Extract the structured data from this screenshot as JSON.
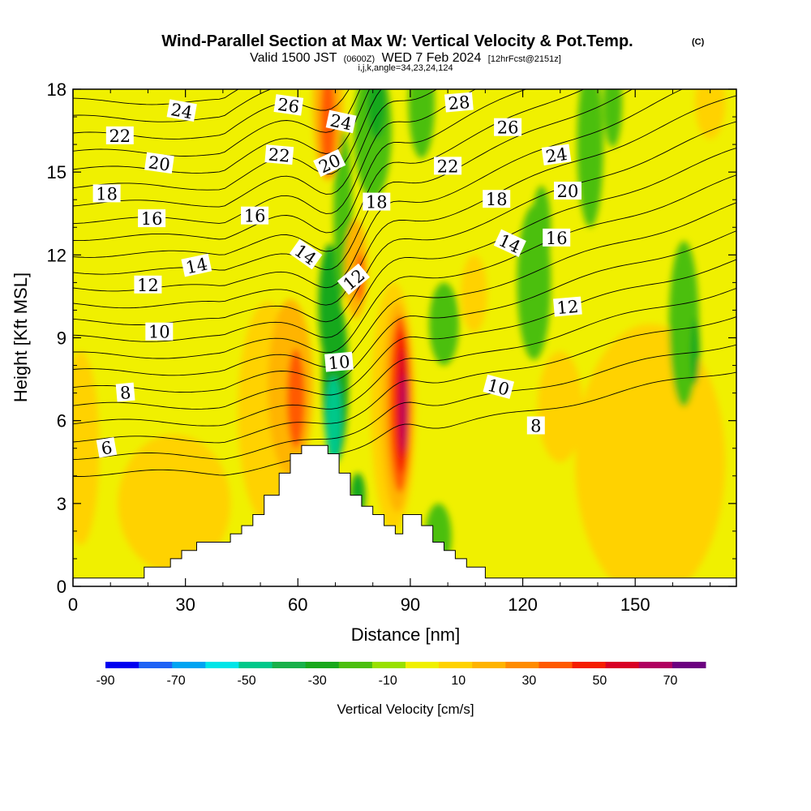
{
  "header": {
    "title": "Wind-Parallel Section at Max W: Vertical Velocity & Pot.Temp.",
    "copyright": "(C)",
    "valid_prefix": "Valid 1500 JST",
    "valid_utc": "(0600Z)",
    "valid_date": "WED 7 Feb 2024",
    "forecast": "[12hrFcst@2151z]",
    "params": "i,j,k,angle=34,23,24,124"
  },
  "chart_data": {
    "type": "heatmap",
    "title": "Wind-Parallel Section at Max W: Vertical Velocity & Pot.Temp.",
    "xlabel": "Distance [nm]",
    "ylabel": "Height [Kft MSL]",
    "xlim": [
      0,
      177
    ],
    "ylim": [
      0,
      18
    ],
    "x_ticks": [
      {
        "value": 0,
        "label": "0"
      },
      {
        "value": 30,
        "label": "30"
      },
      {
        "value": 60,
        "label": "60"
      },
      {
        "value": 90,
        "label": "90"
      },
      {
        "value": 120,
        "label": "120"
      },
      {
        "value": 150,
        "label": "150"
      }
    ],
    "y_ticks": [
      {
        "value": 0,
        "label": "0"
      },
      {
        "value": 3,
        "label": "3"
      },
      {
        "value": 6,
        "label": "6"
      },
      {
        "value": 9,
        "label": "9"
      },
      {
        "value": 12,
        "label": "12"
      },
      {
        "value": 15,
        "label": "15"
      },
      {
        "value": 18,
        "label": "18"
      }
    ],
    "colorbar": {
      "title": "Vertical Velocity [cm/s]",
      "min": -90,
      "max": 80,
      "step": 10,
      "colors": [
        "#0000f0",
        "#1f63f5",
        "#00a4f2",
        "#00e5e8",
        "#00c88a",
        "#19b04a",
        "#19a81c",
        "#4cbf10",
        "#99e000",
        "#f0f000",
        "#ffd200",
        "#ffb400",
        "#ff8c00",
        "#ff5a00",
        "#f51e00",
        "#d80026",
        "#b00060",
        "#6c0080"
      ],
      "tick_labels": [
        {
          "value": -90,
          "label": "-90"
        },
        {
          "value": -70,
          "label": "-70"
        },
        {
          "value": -50,
          "label": "-50"
        },
        {
          "value": -30,
          "label": "-30"
        },
        {
          "value": -10,
          "label": "-10"
        },
        {
          "value": 10,
          "label": "10"
        },
        {
          "value": 30,
          "label": "30"
        },
        {
          "value": 50,
          "label": "50"
        },
        {
          "value": 70,
          "label": "70"
        }
      ]
    },
    "terrain": [
      [
        0,
        0.3
      ],
      [
        19,
        0.3
      ],
      [
        19,
        0.7
      ],
      [
        26,
        0.7
      ],
      [
        26,
        1.0
      ],
      [
        29,
        1.0
      ],
      [
        29,
        1.3
      ],
      [
        33,
        1.3
      ],
      [
        33,
        1.6
      ],
      [
        42,
        1.6
      ],
      [
        42,
        1.9
      ],
      [
        45,
        1.9
      ],
      [
        45,
        2.2
      ],
      [
        48,
        2.2
      ],
      [
        48,
        2.6
      ],
      [
        51,
        2.6
      ],
      [
        51,
        3.3
      ],
      [
        55,
        3.3
      ],
      [
        55,
        4.1
      ],
      [
        58,
        4.1
      ],
      [
        58,
        4.8
      ],
      [
        61,
        4.8
      ],
      [
        61,
        5.1
      ],
      [
        68,
        5.1
      ],
      [
        68,
        4.8
      ],
      [
        71,
        4.8
      ],
      [
        71,
        4.1
      ],
      [
        74,
        4.1
      ],
      [
        74,
        3.3
      ],
      [
        77,
        3.3
      ],
      [
        77,
        2.9
      ],
      [
        80,
        2.9
      ],
      [
        80,
        2.6
      ],
      [
        83,
        2.6
      ],
      [
        83,
        2.2
      ],
      [
        86,
        2.2
      ],
      [
        86,
        1.9
      ],
      [
        88,
        1.9
      ],
      [
        88,
        2.6
      ],
      [
        93,
        2.6
      ],
      [
        93,
        2.2
      ],
      [
        96,
        2.2
      ],
      [
        96,
        1.6
      ],
      [
        99,
        1.6
      ],
      [
        99,
        1.3
      ],
      [
        102,
        1.3
      ],
      [
        102,
        1.0
      ],
      [
        105,
        1.0
      ],
      [
        105,
        0.7
      ],
      [
        110,
        0.7
      ],
      [
        110,
        0.3
      ],
      [
        177,
        0.3
      ]
    ],
    "velocity_cells": [
      {
        "x": 2,
        "y": 5.0,
        "rx": 5,
        "ry": 3.5,
        "w": 10
      },
      {
        "x": 27,
        "y": 3.0,
        "rx": 15,
        "ry": 2.5,
        "w": 15
      },
      {
        "x": 52,
        "y": 6.3,
        "rx": 8,
        "ry": 4.0,
        "w": 18
      },
      {
        "x": 58,
        "y": 7.2,
        "rx": 6,
        "ry": 3.2,
        "w": 28
      },
      {
        "x": 59.5,
        "y": 6.8,
        "rx": 2.4,
        "ry": 1.8,
        "w": 40
      },
      {
        "x": 70,
        "y": 7.5,
        "rx": 3.5,
        "ry": 3.0,
        "w": -22
      },
      {
        "x": 68.5,
        "y": 10.2,
        "rx": 3,
        "ry": 2.2,
        "w": -25
      },
      {
        "x": 69.5,
        "y": 6.0,
        "rx": 2.2,
        "ry": 1.6,
        "w": -42
      },
      {
        "x": 72,
        "y": 13.5,
        "rx": 2.5,
        "ry": 3.0,
        "w": -18
      },
      {
        "x": 75.5,
        "y": 11.5,
        "rx": 3,
        "ry": 1.8,
        "w": 28
      },
      {
        "x": 76.5,
        "y": 11.2,
        "rx": 1.2,
        "ry": 0.9,
        "w": 46
      },
      {
        "x": 68,
        "y": 17.5,
        "rx": 4.0,
        "ry": 2.8,
        "w": 28
      },
      {
        "x": 68,
        "y": 16.8,
        "rx": 2.0,
        "ry": 2.0,
        "w": 45
      },
      {
        "x": 76,
        "y": 3.3,
        "rx": 2.0,
        "ry": 0.8,
        "w": -22
      },
      {
        "x": 85.5,
        "y": 6.5,
        "rx": 6,
        "ry": 4.5,
        "w": 15
      },
      {
        "x": 86.5,
        "y": 6.5,
        "rx": 4.2,
        "ry": 3.8,
        "w": 28
      },
      {
        "x": 87.2,
        "y": 6.6,
        "rx": 3.0,
        "ry": 3.2,
        "w": 42
      },
      {
        "x": 87.6,
        "y": 6.7,
        "rx": 2.0,
        "ry": 2.6,
        "w": 55
      },
      {
        "x": 87.9,
        "y": 6.6,
        "rx": 1.2,
        "ry": 2.0,
        "w": 65
      },
      {
        "x": 88.2,
        "y": 6.3,
        "rx": 0.7,
        "ry": 1.4,
        "w": 75
      },
      {
        "x": 80,
        "y": 16.5,
        "rx": 5,
        "ry": 2.5,
        "w": -16
      },
      {
        "x": 81,
        "y": 17.5,
        "rx": 2.5,
        "ry": 1.3,
        "w": -24
      },
      {
        "x": 93,
        "y": 17.5,
        "rx": 3.5,
        "ry": 2.0,
        "w": -16
      },
      {
        "x": 99,
        "y": 9.5,
        "rx": 4,
        "ry": 1.5,
        "w": -14
      },
      {
        "x": 97.5,
        "y": 1.8,
        "rx": 3.5,
        "ry": 1.2,
        "w": -18
      },
      {
        "x": 107,
        "y": 10.6,
        "rx": 3.5,
        "ry": 1.4,
        "w": 12
      },
      {
        "x": 123,
        "y": 11.0,
        "rx": 4.5,
        "ry": 2.8,
        "w": -15
      },
      {
        "x": 125,
        "y": 13.0,
        "rx": 2.5,
        "ry": 1.5,
        "w": -18
      },
      {
        "x": 138,
        "y": 16.0,
        "rx": 3.5,
        "ry": 3.0,
        "w": -15
      },
      {
        "x": 144,
        "y": 17.5,
        "rx": 2.5,
        "ry": 1.6,
        "w": -16
      },
      {
        "x": 154,
        "y": 4.5,
        "rx": 20,
        "ry": 5.0,
        "w": 12
      },
      {
        "x": 163,
        "y": 9.5,
        "rx": 4,
        "ry": 3.0,
        "w": -14
      },
      {
        "x": 166,
        "y": 8.5,
        "rx": 1.2,
        "ry": 1.2,
        "w": -24
      },
      {
        "x": 170,
        "y": 17.5,
        "rx": 4,
        "ry": 1.3,
        "w": 18
      },
      {
        "x": 130,
        "y": 6.5,
        "rx": 6,
        "ry": 2.0,
        "w": 12
      },
      {
        "x": 146,
        "y": 3.5,
        "rx": 2,
        "ry": 1.5,
        "w": 18
      }
    ],
    "theta_contours": {
      "levels": [
        5,
        5.5,
        6,
        6.5,
        7,
        7.5,
        8,
        8.5,
        9,
        9.5,
        10,
        10.5,
        11,
        11.5,
        12,
        12.5,
        13,
        13.5,
        14,
        14.5,
        15,
        15.5,
        16,
        16.5,
        17,
        17.5,
        18,
        18.5,
        19,
        19.5,
        20,
        20.5,
        21,
        21.5,
        22,
        22.5,
        23,
        23.5,
        24,
        24.5,
        25,
        25.5,
        26,
        26.5,
        27,
        27.5,
        28,
        28.5,
        29
      ],
      "labels": [
        {
          "text": "6",
          "x": 9,
          "y": 5.0,
          "angle": -10
        },
        {
          "text": "8",
          "x": 14,
          "y": 7.0,
          "angle": -5
        },
        {
          "text": "10",
          "x": 23,
          "y": 9.2,
          "angle": 0
        },
        {
          "text": "12",
          "x": 20,
          "y": 10.9,
          "angle": 0
        },
        {
          "text": "14",
          "x": 33,
          "y": 11.6,
          "angle": -12
        },
        {
          "text": "16",
          "x": 21,
          "y": 13.3,
          "angle": 0
        },
        {
          "text": "18",
          "x": 9,
          "y": 14.2,
          "angle": 0
        },
        {
          "text": "20",
          "x": 23,
          "y": 15.3,
          "angle": 8
        },
        {
          "text": "22",
          "x": 12.5,
          "y": 16.3,
          "angle": 0
        },
        {
          "text": "24",
          "x": 29,
          "y": 17.2,
          "angle": 10
        },
        {
          "text": "16",
          "x": 48.5,
          "y": 13.4,
          "angle": 0
        },
        {
          "text": "22",
          "x": 55,
          "y": 15.6,
          "angle": 5
        },
        {
          "text": "26",
          "x": 57.5,
          "y": 17.4,
          "angle": 8
        },
        {
          "text": "14",
          "x": 62,
          "y": 12.0,
          "angle": 35
        },
        {
          "text": "20",
          "x": 68.5,
          "y": 15.3,
          "angle": -25
        },
        {
          "text": "24",
          "x": 71.5,
          "y": 16.8,
          "angle": 12
        },
        {
          "text": "12",
          "x": 75,
          "y": 11.1,
          "angle": -40
        },
        {
          "text": "10",
          "x": 71,
          "y": 8.1,
          "angle": -5
        },
        {
          "text": "18",
          "x": 81,
          "y": 13.9,
          "angle": 0
        },
        {
          "text": "22",
          "x": 100,
          "y": 15.2,
          "angle": 0
        },
        {
          "text": "28",
          "x": 103,
          "y": 17.5,
          "angle": -5
        },
        {
          "text": "18",
          "x": 113,
          "y": 14.0,
          "angle": 0
        },
        {
          "text": "26",
          "x": 116,
          "y": 16.6,
          "angle": 0
        },
        {
          "text": "14",
          "x": 116.5,
          "y": 12.4,
          "angle": 25
        },
        {
          "text": "10",
          "x": 113.5,
          "y": 7.2,
          "angle": 15
        },
        {
          "text": "8",
          "x": 123.5,
          "y": 5.8,
          "angle": 0
        },
        {
          "text": "24",
          "x": 129,
          "y": 15.6,
          "angle": -8
        },
        {
          "text": "20",
          "x": 132,
          "y": 14.3,
          "angle": 0
        },
        {
          "text": "16",
          "x": 129,
          "y": 12.6,
          "angle": 0
        },
        {
          "text": "12",
          "x": 132,
          "y": 10.1,
          "angle": -5
        }
      ]
    }
  }
}
